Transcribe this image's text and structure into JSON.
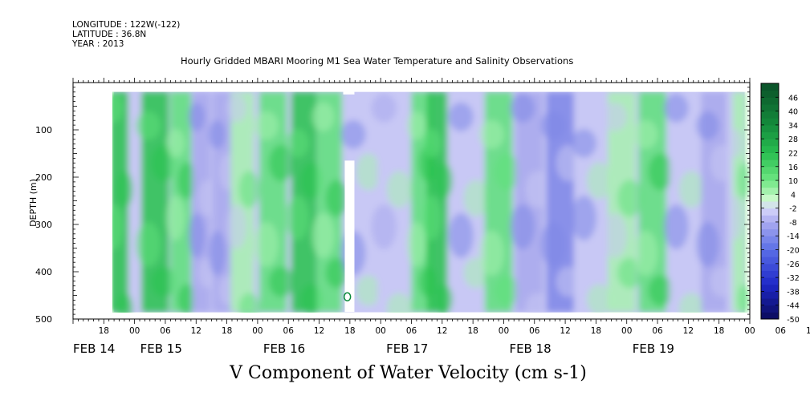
{
  "header": {
    "longitude": "LONGITUDE : 122W(-122)",
    "latitude": "LATITUDE : 36.8N",
    "year": "YEAR : 2013"
  },
  "title": "Hourly Gridded MBARI Mooring M1 Sea Water Temperature and Salinity Observations",
  "caption": "V Component of Water Velocity (cm s-1)",
  "colors": {
    "negative_light": "#c8c8f4",
    "negative_mid": "#a8a8ec",
    "negative_dark": "#7e86e6",
    "positive_light": "#a8f0b0",
    "positive_mid": "#5ee07a",
    "positive_dark": "#28c24c",
    "gap": "#ffffff"
  },
  "chart_data": {
    "type": "heatmap",
    "title": "Hourly Gridded MBARI Mooring M1 Sea Water Temperature and Salinity Observations",
    "xlabel": "",
    "ylabel": "DEPTH (m)",
    "variable": "V Component of Water Velocity (cm s-1)",
    "x_time_hours_ticks": [
      "18",
      "00",
      "06",
      "12",
      "18",
      "00",
      "06",
      "12",
      "18",
      "00",
      "06",
      "12",
      "18",
      "00",
      "06",
      "12",
      "18",
      "00",
      "06",
      "12",
      "18",
      "00",
      "06",
      "12",
      "18",
      "00"
    ],
    "x_date_labels": [
      "FEB 14",
      "FEB 15",
      "FEB 16",
      "FEB 17",
      "FEB 18",
      "FEB 19"
    ],
    "xlim": [
      "2013-02-14T12:00",
      "2013-02-20T00:00"
    ],
    "data_xrange": [
      "2013-02-14T20:00",
      "2013-02-19T23:00"
    ],
    "ylim": [
      500,
      0
    ],
    "data_yrange": [
      20,
      485
    ],
    "y_ticks": [
      100,
      200,
      300,
      400,
      500
    ],
    "colorbar_levels": [
      "46",
      "40",
      "34",
      "28",
      "22",
      "16",
      "10",
      "4",
      "-2",
      "-8",
      "-14",
      "-20",
      "-26",
      "-32",
      "-38",
      "-44",
      "-50"
    ],
    "colorbar_range": [
      -50,
      52
    ],
    "colorbar_step": 3,
    "gap_interval": {
      "time": [
        "2013-02-16T17:00",
        "2013-02-16T18:00"
      ],
      "depth": [
        165,
        485
      ]
    },
    "depth_profile_markers": [
      {
        "time": "2013-02-16T17:30",
        "depth": 453
      }
    ],
    "bands": [
      {
        "time": "2013-02-14T21:00",
        "v": 20
      },
      {
        "time": "2013-02-15T04:00",
        "v": 24
      },
      {
        "time": "2013-02-15T09:00",
        "v": 18
      },
      {
        "time": "2013-02-15T13:00",
        "v": -12
      },
      {
        "time": "2013-02-15T17:00",
        "v": -10
      },
      {
        "time": "2013-02-15T21:00",
        "v": 8
      },
      {
        "time": "2013-02-16T03:00",
        "v": 12
      },
      {
        "time": "2013-02-16T09:00",
        "v": 22
      },
      {
        "time": "2013-02-16T14:00",
        "v": 14
      },
      {
        "time": "2013-02-16T20:00",
        "v": -6
      },
      {
        "time": "2013-02-17T02:00",
        "v": -4
      },
      {
        "time": "2013-02-17T08:00",
        "v": 16
      },
      {
        "time": "2013-02-17T11:00",
        "v": 22
      },
      {
        "time": "2013-02-17T17:00",
        "v": -8
      },
      {
        "time": "2013-02-17T23:00",
        "v": 10
      },
      {
        "time": "2013-02-18T05:00",
        "v": -10
      },
      {
        "time": "2013-02-18T11:00",
        "v": -16
      },
      {
        "time": "2013-02-18T17:00",
        "v": -6
      },
      {
        "time": "2013-02-18T23:00",
        "v": 4
      },
      {
        "time": "2013-02-19T05:00",
        "v": 14
      },
      {
        "time": "2013-02-19T11:00",
        "v": -8
      },
      {
        "time": "2013-02-19T17:00",
        "v": -10
      },
      {
        "time": "2013-02-19T22:00",
        "v": 6
      }
    ]
  }
}
